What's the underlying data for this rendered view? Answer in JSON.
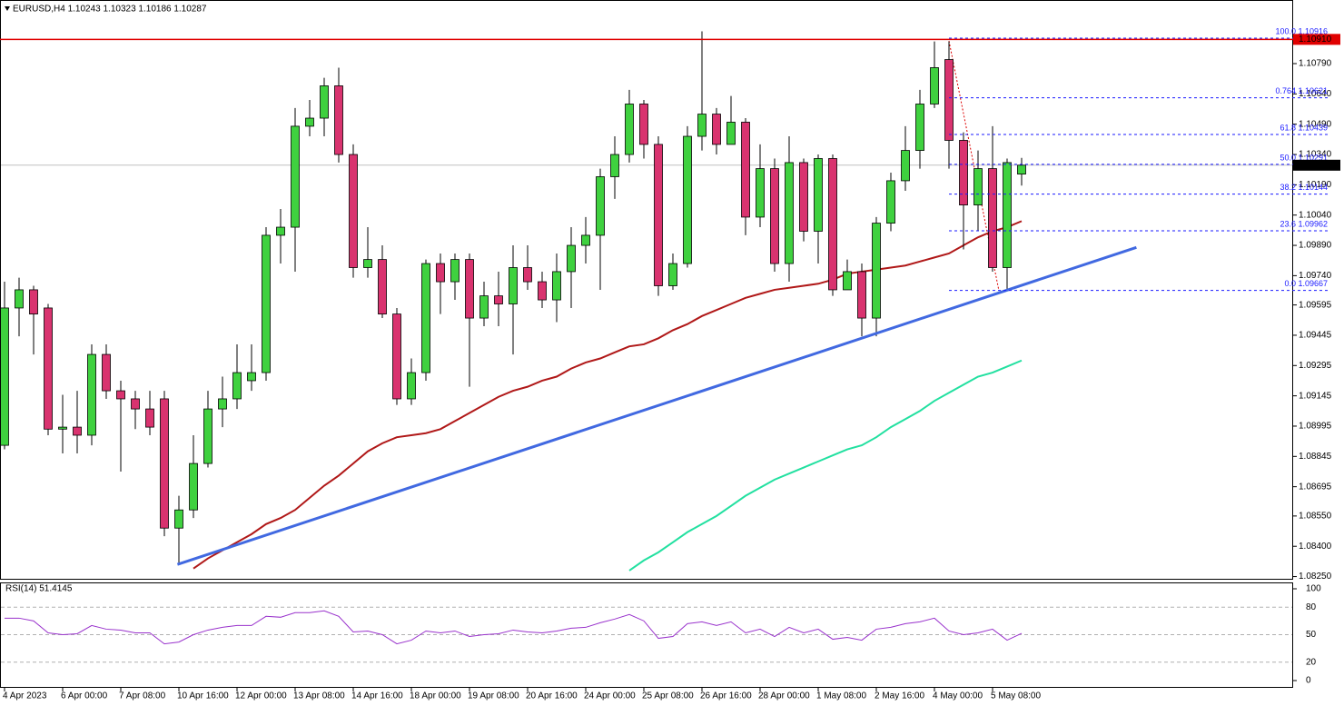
{
  "chart_data": [
    {
      "type": "candlestick",
      "title": "EURUSD,H4  1.10243 1.10323 1.10186 1.10287",
      "categories": [
        "4 Apr 2023",
        null,
        null,
        null,
        "6 Apr 00:00",
        null,
        null,
        null,
        "7 Apr 08:00",
        null,
        null,
        null,
        "10 Apr 16:00",
        null,
        null,
        null,
        "12 Apr 00:00",
        null,
        null,
        null,
        "13 Apr 08:00",
        null,
        null,
        null,
        "14 Apr 16:00",
        null,
        null,
        null,
        "18 Apr 00:00",
        null,
        null,
        null,
        "19 Apr 08:00",
        null,
        null,
        null,
        "20 Apr 16:00",
        null,
        null,
        null,
        "24 Apr 00:00",
        null,
        null,
        null,
        "25 Apr 08:00",
        null,
        null,
        null,
        "26 Apr 16:00",
        null,
        null,
        null,
        "28 Apr 00:00",
        null,
        null,
        null,
        "1 May 08:00",
        null,
        null,
        null,
        "2 May 16:00",
        null,
        null,
        null,
        "4 May 00:00",
        null,
        null,
        null,
        "5 May 08:00",
        null,
        null
      ],
      "open": [
        1.089,
        1.0958,
        1.0967,
        1.0958,
        1.0898,
        1.0899,
        1.0895,
        1.0935,
        1.0917,
        1.0913,
        1.0908,
        1.0913,
        1.0849,
        1.0858,
        1.0881,
        1.0908,
        1.0913,
        1.0922,
        1.0926,
        1.0994,
        1.0998,
        1.1048,
        1.1052,
        1.1068,
        1.1034,
        1.0978,
        1.0982,
        1.0955,
        1.0913,
        1.0926,
        1.098,
        1.0971,
        1.0982,
        1.0953,
        1.0964,
        1.096,
        1.0978,
        1.0971,
        1.0962,
        1.0976,
        1.0989,
        1.0994,
        1.1023,
        1.1034,
        1.1059,
        1.1039,
        1.0969,
        1.098,
        1.1043,
        1.1054,
        1.1039,
        1.105,
        1.1003,
        1.1027,
        1.098,
        1.103,
        1.0996,
        1.1032,
        1.0967,
        1.0976,
        1.0953,
        1.1,
        1.1021,
        1.1036,
        1.1059,
        1.1081,
        1.1041,
        1.1009,
        1.1027,
        1.0978,
        1.10243
      ],
      "high": [
        1.0971,
        1.0973,
        1.0969,
        1.096,
        1.0915,
        1.0917,
        1.094,
        1.094,
        1.0922,
        1.0917,
        1.0917,
        1.0917,
        1.0865,
        1.0895,
        1.0917,
        1.0924,
        1.094,
        1.094,
        1.0998,
        1.1007,
        1.1057,
        1.1061,
        1.1072,
        1.1077,
        1.1039,
        1.0998,
        1.0989,
        1.0958,
        1.0933,
        1.0982,
        1.0985,
        1.0985,
        1.0985,
        1.0971,
        1.0976,
        1.0989,
        1.0989,
        1.0976,
        1.0985,
        1.0998,
        1.1003,
        1.1027,
        1.1043,
        1.1066,
        1.1061,
        1.1043,
        1.0985,
        1.1048,
        1.1095,
        1.1057,
        1.1063,
        1.1052,
        1.1039,
        1.1032,
        1.1043,
        1.1032,
        1.1034,
        1.1034,
        1.0982,
        1.098,
        1.1003,
        1.1025,
        1.1048,
        1.1066,
        1.109,
        1.109,
        1.1045,
        1.1036,
        1.1048,
        1.1032,
        1.10323
      ],
      "low": [
        1.0888,
        1.0944,
        1.0935,
        1.0895,
        1.0886,
        1.0886,
        1.089,
        1.0913,
        1.0877,
        1.0898,
        1.0895,
        1.0845,
        1.0831,
        1.0854,
        1.0879,
        1.0899,
        1.0908,
        1.0917,
        1.0922,
        1.098,
        1.0976,
        1.1043,
        1.1043,
        1.103,
        1.0973,
        1.0973,
        1.0953,
        1.091,
        1.091,
        1.0922,
        1.0955,
        1.0962,
        1.0919,
        1.0949,
        1.0949,
        1.0935,
        1.0967,
        1.0958,
        1.0951,
        1.0958,
        1.098,
        1.0967,
        1.1012,
        1.103,
        1.1032,
        1.0964,
        1.0967,
        1.0978,
        1.1036,
        1.1034,
        1.1039,
        1.0994,
        1.0998,
        1.0976,
        1.0971,
        1.0991,
        1.098,
        1.0964,
        1.0967,
        1.0944,
        1.0944,
        1.0996,
        1.1016,
        1.1027,
        1.1057,
        1.1027,
        1.0987,
        1.0996,
        1.0976,
        1.0967,
        1.10186
      ],
      "close": [
        1.0958,
        1.0967,
        1.0955,
        1.0898,
        1.0899,
        1.0895,
        1.0935,
        1.0917,
        1.0913,
        1.0908,
        1.0899,
        1.0849,
        1.0858,
        1.0881,
        1.0908,
        1.0913,
        1.0926,
        1.0926,
        1.0994,
        1.0998,
        1.1048,
        1.1052,
        1.1068,
        1.1034,
        1.0978,
        1.0982,
        1.0955,
        1.0913,
        1.0926,
        1.098,
        1.0971,
        1.0982,
        1.0953,
        1.0964,
        1.096,
        1.0978,
        1.0971,
        1.0962,
        1.0976,
        1.0989,
        1.0994,
        1.1023,
        1.1034,
        1.1059,
        1.1039,
        1.0969,
        1.098,
        1.1043,
        1.1054,
        1.1039,
        1.105,
        1.1003,
        1.1027,
        1.098,
        1.103,
        1.0996,
        1.1032,
        1.0967,
        1.0976,
        1.0953,
        1.1,
        1.1021,
        1.1036,
        1.1059,
        1.1077,
        1.1041,
        1.1009,
        1.1027,
        1.0978,
        1.103,
        1.10287
      ],
      "up_color": "#3fd13f",
      "down_color": "#d9336f",
      "series": [
        {
          "color": "#b01818",
          "values": [
            null,
            null,
            null,
            null,
            null,
            null,
            null,
            null,
            null,
            null,
            null,
            null,
            null,
            1.0829,
            1.0834,
            1.0838,
            1.0842,
            1.0846,
            1.0851,
            1.0854,
            1.0858,
            1.0864,
            1.087,
            1.0875,
            1.0881,
            1.0887,
            1.0891,
            1.0894,
            1.0895,
            1.0896,
            1.0898,
            1.0902,
            1.0906,
            1.091,
            1.0914,
            1.0917,
            1.0919,
            1.0922,
            1.0924,
            1.0928,
            1.0931,
            1.0933,
            1.0936,
            1.0939,
            1.094,
            1.0943,
            1.0947,
            1.095,
            1.0954,
            1.0957,
            1.096,
            1.0963,
            1.0965,
            1.0967,
            1.0968,
            1.0969,
            1.097,
            1.0972,
            1.0975,
            1.0976,
            1.0977,
            1.0978,
            1.0979,
            1.0981,
            1.0983,
            1.0985,
            1.0989,
            1.0993,
            1.0996,
            1.0998,
            1.1001
          ]
        },
        {
          "color": "#22e0a0",
          "values": [
            null,
            null,
            null,
            null,
            null,
            null,
            null,
            null,
            null,
            null,
            null,
            null,
            null,
            null,
            null,
            null,
            null,
            null,
            null,
            null,
            null,
            null,
            null,
            null,
            null,
            null,
            null,
            null,
            null,
            null,
            null,
            null,
            null,
            null,
            null,
            null,
            null,
            null,
            null,
            null,
            null,
            null,
            null,
            1.0828,
            1.0833,
            1.0837,
            1.0842,
            1.0847,
            1.0851,
            1.0855,
            1.086,
            1.0865,
            1.0869,
            1.0873,
            1.0876,
            1.0879,
            1.0882,
            1.0885,
            1.0888,
            1.089,
            1.0894,
            1.0899,
            1.0903,
            1.0907,
            1.0912,
            1.0916,
            1.092,
            1.0924,
            1.0926,
            1.0929,
            1.0932
          ]
        }
      ],
      "trendline": {
        "x": [
          11.9,
          77.9
        ],
        "values": [
          1.0831,
          1.0988
        ],
        "color": "#4169e1"
      },
      "hline": {
        "value": 1.1091,
        "label": "1.10910",
        "color": "#e00000"
      },
      "last_price": 1.10287,
      "fib": [
        {
          "value": 1.10916,
          "label": "100.0 1.10916"
        },
        {
          "value": 1.10621,
          "label": "0.764 1.10621"
        },
        {
          "value": 1.10439,
          "label": "61.8 1.10439"
        },
        {
          "value": 1.10291,
          "label": "50.0 1.10291"
        },
        {
          "value": 1.10144,
          "label": "38.2 1.10144"
        },
        {
          "value": 1.09962,
          "label": "23.6 1.09962"
        },
        {
          "value": 1.09667,
          "label": "0.0 1.09667"
        }
      ],
      "ylim": [
        1.08239,
        1.11105
      ],
      "yticks": [
        {
          "value": 1.1079,
          "label": "1.10790"
        },
        {
          "value": 1.1064,
          "label": "1.10640"
        },
        {
          "value": 1.1049,
          "label": "1.10490"
        },
        {
          "value": 1.1034,
          "label": "1.10340"
        },
        {
          "value": 1.1019,
          "label": "1.10190"
        },
        {
          "value": 1.1004,
          "label": "1.10040"
        },
        {
          "value": 1.0989,
          "label": "1.09890"
        },
        {
          "value": 1.0974,
          "label": "1.09740"
        },
        1.09595,
        1.09445,
        1.09295,
        1.09145,
        1.08995,
        1.08845,
        1.08695,
        {
          "value": 1.0855,
          "label": "1.08550"
        },
        {
          "value": 1.084,
          "label": "1.08400"
        },
        {
          "value": 1.0825,
          "label": "1.08250"
        }
      ]
    },
    {
      "type": "line",
      "title": "RSI(14) 51.4145",
      "color": "#9932cc",
      "values": [
        68,
        68,
        65,
        52,
        50,
        51,
        60,
        56,
        55,
        52,
        52,
        40,
        42,
        50,
        55,
        58,
        60,
        60,
        70,
        69,
        74,
        74,
        76,
        70,
        53,
        54,
        50,
        40,
        44,
        54,
        52,
        54,
        48,
        50,
        51,
        55,
        53,
        52,
        54,
        57,
        58,
        63,
        67,
        72,
        65,
        46,
        48,
        62,
        64,
        60,
        64,
        52,
        56,
        48,
        58,
        52,
        56,
        45,
        47,
        44,
        56,
        58,
        62,
        64,
        68,
        54,
        50,
        52,
        56,
        44,
        51.4145
      ],
      "ylim": [
        0,
        100
      ],
      "yticks": [
        100,
        80,
        50,
        20,
        0
      ]
    }
  ]
}
